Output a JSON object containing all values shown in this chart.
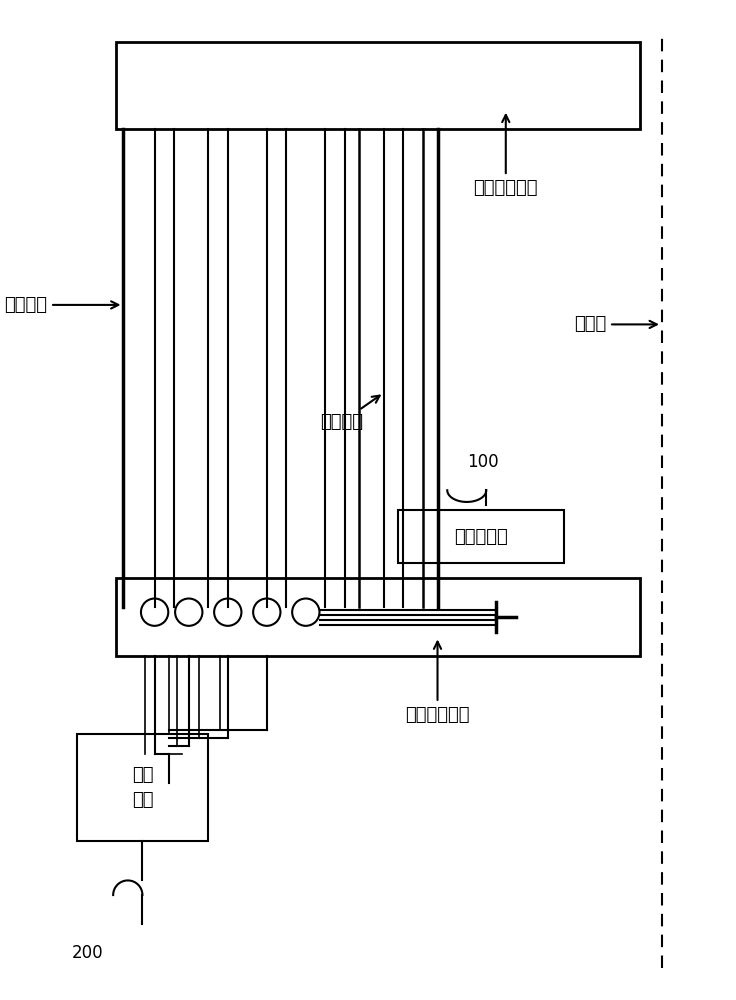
{
  "bg_color": "#ffffff",
  "line_color": "#000000",
  "font_size_label": 13,
  "font_size_num": 12,
  "fig_width": 7.36,
  "fig_height": 10.0,
  "dpi": 100,
  "labels": {
    "high_voltage_frame": "高压端星形架",
    "center_axis": "中心轴",
    "outer_enclosure": "外层包封",
    "inner_enclosure": "内层包封",
    "current_sensor": "电流传感器",
    "ground_frame": "接地端星形架",
    "control_unit": "控制\n单元",
    "label_100": "100",
    "label_200": "200"
  }
}
